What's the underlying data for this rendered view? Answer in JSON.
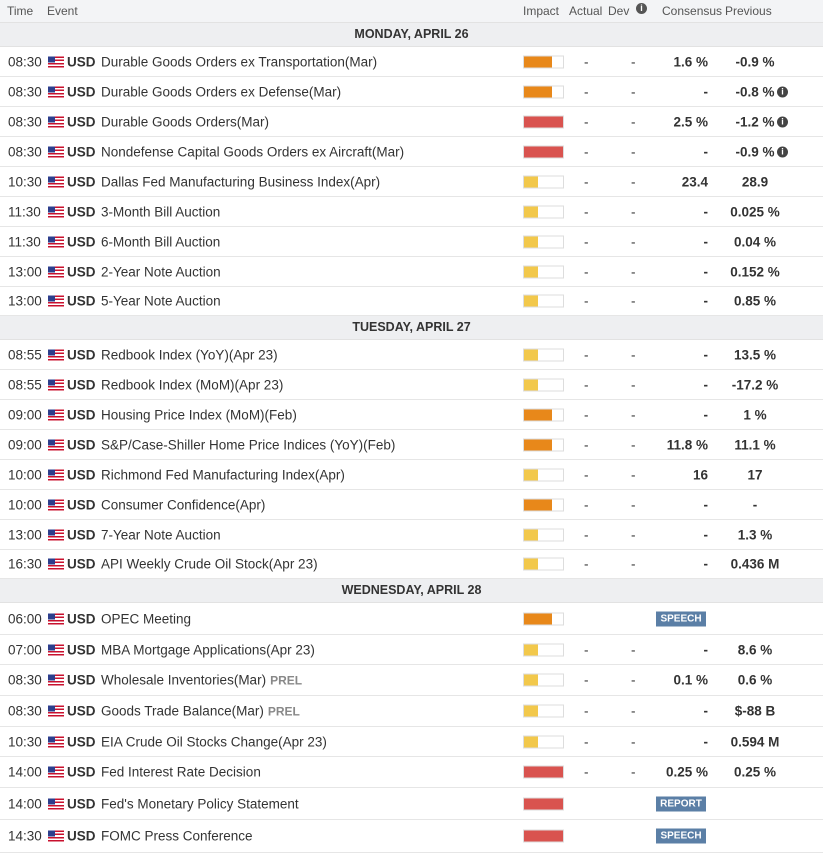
{
  "header": {
    "time": "Time",
    "event": "Event",
    "impact": "Impact",
    "actual": "Actual",
    "dev": "Dev",
    "consensus": "Consensus",
    "previous": "Previous"
  },
  "days": [
    {
      "label": "MONDAY, APRIL 26",
      "events": [
        {
          "time": "08:30",
          "cur": "USD",
          "name": "Durable Goods Orders ex Transportation(Mar)",
          "impact": "medium",
          "actual": "-",
          "dev": "-",
          "cons": "1.6 %",
          "prev": "-0.9 %",
          "info": false,
          "h": 29
        },
        {
          "time": "08:30",
          "cur": "USD",
          "name": "Durable Goods Orders ex Defense(Mar)",
          "impact": "medium",
          "actual": "-",
          "dev": "-",
          "cons": "-",
          "prev": "-0.8 %",
          "info": true,
          "h": 29
        },
        {
          "time": "08:30",
          "cur": "USD",
          "name": "Durable Goods Orders(Mar)",
          "impact": "high",
          "actual": "-",
          "dev": "-",
          "cons": "2.5 %",
          "prev": "-1.2 %",
          "info": true,
          "h": 29
        },
        {
          "time": "08:30",
          "cur": "USD",
          "name": "Nondefense Capital Goods Orders ex Aircraft(Mar)",
          "impact": "high",
          "actual": "-",
          "dev": "-",
          "cons": "-",
          "prev": "-0.9 %",
          "info": true,
          "h": 29
        },
        {
          "time": "10:30",
          "cur": "USD",
          "name": "Dallas Fed Manufacturing Business Index(Apr)",
          "impact": "low",
          "actual": "-",
          "dev": "-",
          "cons": "23.4",
          "prev": "28.9",
          "info": false,
          "h": 29
        },
        {
          "time": "11:30",
          "cur": "USD",
          "name": "3-Month Bill Auction",
          "impact": "low",
          "actual": "-",
          "dev": "-",
          "cons": "-",
          "prev": "0.025 %",
          "info": false,
          "h": 29
        },
        {
          "time": "11:30",
          "cur": "USD",
          "name": "6-Month Bill Auction",
          "impact": "low",
          "actual": "-",
          "dev": "-",
          "cons": "-",
          "prev": "0.04 %",
          "info": false,
          "h": 29
        },
        {
          "time": "13:00",
          "cur": "USD",
          "name": "2-Year Note Auction",
          "impact": "low",
          "actual": "-",
          "dev": "-",
          "cons": "-",
          "prev": "0.152 %",
          "info": false,
          "h": 29
        },
        {
          "time": "13:00",
          "cur": "USD",
          "name": "5-Year Note Auction",
          "impact": "low",
          "actual": "-",
          "dev": "-",
          "cons": "-",
          "prev": "0.85 %",
          "info": false,
          "h": 28
        }
      ]
    },
    {
      "label": "TUESDAY, APRIL 27",
      "events": [
        {
          "time": "08:55",
          "cur": "USD",
          "name": "Redbook Index (YoY)(Apr 23)",
          "impact": "low",
          "actual": "-",
          "dev": "-",
          "cons": "-",
          "prev": "13.5 %",
          "info": false,
          "h": 29
        },
        {
          "time": "08:55",
          "cur": "USD",
          "name": "Redbook Index (MoM)(Apr 23)",
          "impact": "low",
          "actual": "-",
          "dev": "-",
          "cons": "-",
          "prev": "-17.2 %",
          "info": false,
          "h": 29
        },
        {
          "time": "09:00",
          "cur": "USD",
          "name": "Housing Price Index (MoM)(Feb)",
          "impact": "medium",
          "actual": "-",
          "dev": "-",
          "cons": "-",
          "prev": "1 %",
          "info": false,
          "h": 29
        },
        {
          "time": "09:00",
          "cur": "USD",
          "name": "S&P/Case-Shiller Home Price Indices (YoY)(Feb)",
          "impact": "medium",
          "actual": "-",
          "dev": "-",
          "cons": "11.8 %",
          "prev": "11.1 %",
          "info": false,
          "h": 29
        },
        {
          "time": "10:00",
          "cur": "USD",
          "name": "Richmond Fed Manufacturing Index(Apr)",
          "impact": "low",
          "actual": "-",
          "dev": "-",
          "cons": "16",
          "prev": "17",
          "info": false,
          "h": 29
        },
        {
          "time": "10:00",
          "cur": "USD",
          "name": "Consumer Confidence(Apr)",
          "impact": "medium",
          "actual": "-",
          "dev": "-",
          "cons": "-",
          "prev": "-",
          "info": false,
          "h": 29
        },
        {
          "time": "13:00",
          "cur": "USD",
          "name": "7-Year Note Auction",
          "impact": "low",
          "actual": "-",
          "dev": "-",
          "cons": "-",
          "prev": "1.3 %",
          "info": false,
          "h": 29
        },
        {
          "time": "16:30",
          "cur": "USD",
          "name": "API Weekly Crude Oil Stock(Apr 23)",
          "impact": "low",
          "actual": "-",
          "dev": "-",
          "cons": "-",
          "prev": "0.436 M",
          "info": false,
          "h": 28
        }
      ]
    },
    {
      "label": "WEDNESDAY, APRIL 28",
      "events": [
        {
          "time": "06:00",
          "cur": "USD",
          "name": "OPEC Meeting",
          "impact": "medium",
          "badge": "SPEECH",
          "h": 31
        },
        {
          "time": "07:00",
          "cur": "USD",
          "name": "MBA Mortgage Applications(Apr 23)",
          "impact": "low",
          "actual": "-",
          "dev": "-",
          "cons": "-",
          "prev": "8.6 %",
          "info": false,
          "h": 29
        },
        {
          "time": "08:30",
          "cur": "USD",
          "name": "Wholesale Inventories(Mar)",
          "prel": "PREL",
          "impact": "low",
          "actual": "-",
          "dev": "-",
          "cons": "0.1 %",
          "prev": "0.6 %",
          "info": false,
          "h": 30
        },
        {
          "time": "08:30",
          "cur": "USD",
          "name": "Goods Trade Balance(Mar)",
          "prel": "PREL",
          "impact": "low",
          "actual": "-",
          "dev": "-",
          "cons": "-",
          "prev": "$-88 B",
          "info": false,
          "h": 30
        },
        {
          "time": "10:30",
          "cur": "USD",
          "name": "EIA Crude Oil Stocks Change(Apr 23)",
          "impact": "low",
          "actual": "-",
          "dev": "-",
          "cons": "-",
          "prev": "0.594 M",
          "info": false,
          "h": 29
        },
        {
          "time": "14:00",
          "cur": "USD",
          "name": "Fed Interest Rate Decision",
          "impact": "high",
          "actual": "-",
          "dev": "-",
          "cons": "0.25 %",
          "prev": "0.25 %",
          "info": false,
          "h": 30
        },
        {
          "time": "14:00",
          "cur": "USD",
          "name": "Fed's Monetary Policy Statement",
          "impact": "high",
          "badge": "REPORT",
          "h": 31
        },
        {
          "time": "14:30",
          "cur": "USD",
          "name": "FOMC Press Conference",
          "impact": "high",
          "badge": "SPEECH",
          "h": 32
        }
      ]
    }
  ],
  "impact_levels": {
    "low": 0.35,
    "medium": 0.72,
    "high": 1.0
  },
  "impact_colors": {
    "low": "#f2c84b",
    "medium": "#e8881a",
    "high": "#d9534f"
  },
  "info_icon_glyph": "i"
}
